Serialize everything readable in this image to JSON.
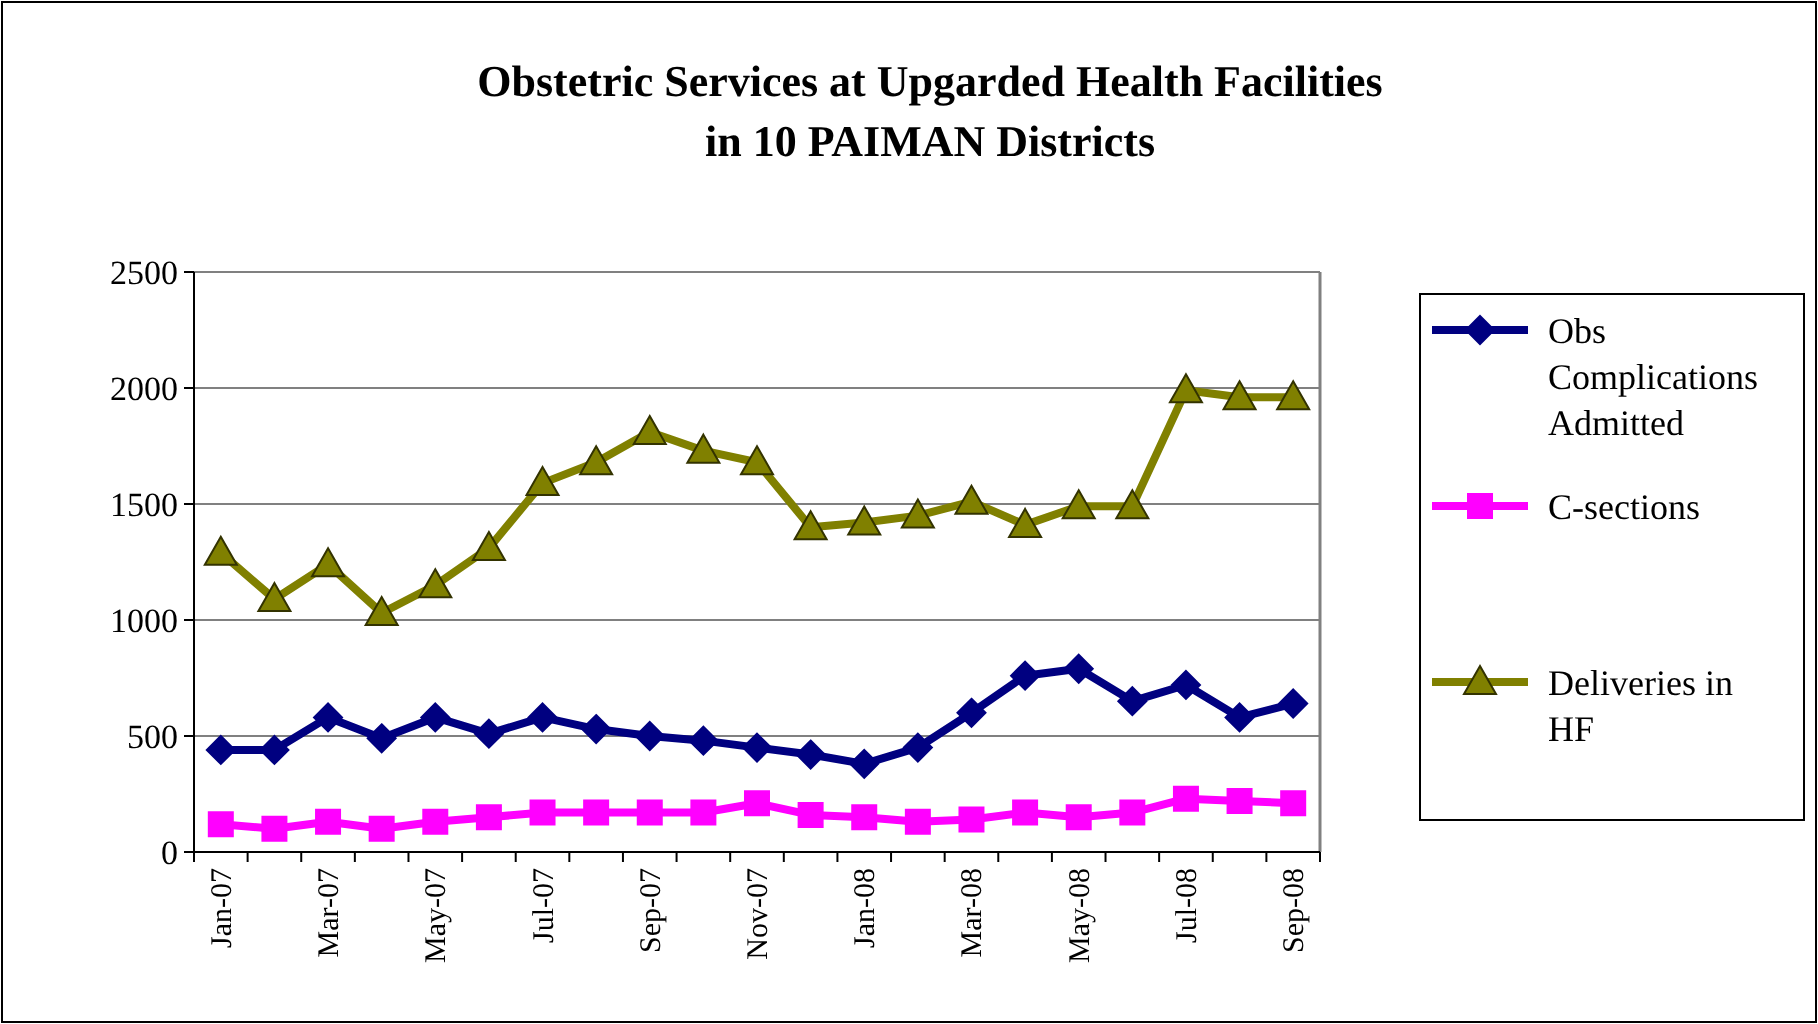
{
  "chart_data": {
    "type": "line",
    "title": "Obstetric Services at Upgarded Health Facilities in 10 PAIMAN Districts",
    "categories": [
      "Jan-07",
      null,
      "Mar-07",
      null,
      "May-07",
      null,
      "Jul-07",
      null,
      "Sep-07",
      null,
      "Nov-07",
      null,
      "Jan-08",
      null,
      "Mar-08",
      null,
      "May-08",
      null,
      "Jul-08",
      null,
      "Sep-08"
    ],
    "series": [
      {
        "name": "Obs Complications Admitted",
        "color": "#000080",
        "marker": "diamond",
        "values": [
          440,
          440,
          580,
          490,
          580,
          510,
          580,
          530,
          500,
          480,
          450,
          420,
          380,
          450,
          600,
          760,
          790,
          650,
          720,
          580,
          640
        ]
      },
      {
        "name": "C-sections",
        "color": "#ff00ff",
        "marker": "square",
        "values": [
          120,
          100,
          130,
          100,
          130,
          150,
          170,
          170,
          170,
          170,
          210,
          160,
          150,
          130,
          140,
          170,
          150,
          170,
          230,
          220,
          210
        ]
      },
      {
        "name": "Deliveries in HF",
        "color": "#808000",
        "marker": "triangle",
        "values": [
          1290,
          1090,
          1240,
          1030,
          1150,
          1310,
          1590,
          1680,
          1810,
          1730,
          1680,
          1400,
          1420,
          1450,
          1510,
          1410,
          1490,
          1490,
          1990,
          1960,
          1960
        ]
      }
    ],
    "ylim": [
      0,
      2500
    ],
    "yticks": [
      0,
      500,
      1000,
      1500,
      2000,
      2500
    ],
    "grid": "y",
    "legend": "right",
    "line_style": "solid"
  }
}
